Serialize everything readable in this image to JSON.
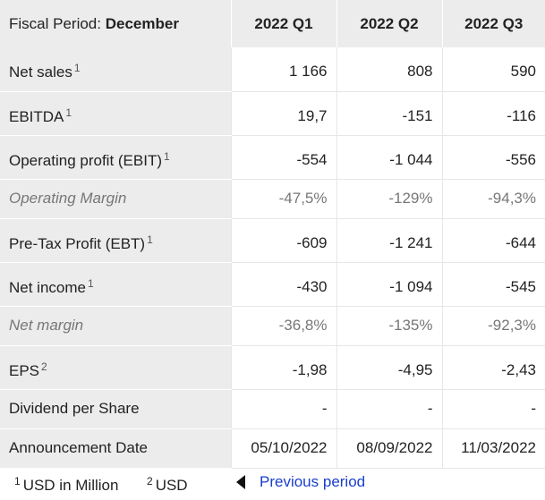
{
  "header": {
    "period_label": "Fiscal Period:",
    "period_value": "December",
    "columns": [
      "2022 Q1",
      "2022 Q2",
      "2022 Q3"
    ]
  },
  "rows": [
    {
      "label": "Net sales",
      "note": "1",
      "values": [
        "1 166",
        "808",
        "590"
      ]
    },
    {
      "label": "EBITDA",
      "note": "1",
      "values": [
        "19,7",
        "-151",
        "-116"
      ]
    },
    {
      "label": "Operating profit (EBIT)",
      "note": "1",
      "values": [
        "-554",
        "-1 044",
        "-556"
      ]
    },
    {
      "label": "Operating Margin",
      "note": "",
      "values": [
        "-47,5%",
        "-129%",
        "-94,3%"
      ]
    },
    {
      "label": "Pre-Tax Profit (EBT)",
      "note": "1",
      "values": [
        "-609",
        "-1 241",
        "-644"
      ]
    },
    {
      "label": "Net income",
      "note": "1",
      "values": [
        "-430",
        "-1 094",
        "-545"
      ]
    },
    {
      "label": "Net margin",
      "note": "",
      "values": [
        "-36,8%",
        "-135%",
        "-92,3%"
      ]
    },
    {
      "label": "EPS",
      "note": "2",
      "values": [
        "-1,98",
        "-4,95",
        "-2,43"
      ]
    },
    {
      "label": "Dividend per Share",
      "note": "",
      "values": [
        "-",
        "-",
        "-"
      ]
    },
    {
      "label": "Announcement Date",
      "note": "",
      "values": [
        "05/10/2022",
        "08/09/2022",
        "11/03/2022"
      ]
    }
  ],
  "footer": {
    "note1_marker": "1",
    "note1_text": "USD in Million",
    "note2_marker": "2",
    "note2_text": "USD",
    "prev_label": "Previous period",
    "prev_icon": "caret-left-icon"
  }
}
